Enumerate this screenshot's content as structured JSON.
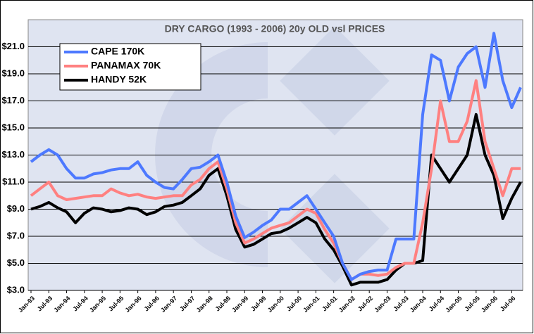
{
  "chart_data": {
    "type": "line",
    "title": "DRY CARGO (1993 - 2006) 20y OLD vsl PRICES",
    "categories": [
      "Jan-93",
      null,
      "Jul-93",
      null,
      "Jan-94",
      null,
      "Jul-94",
      null,
      "Jan-95",
      null,
      "Jul-95",
      null,
      "Jan-96",
      null,
      "Jul-96",
      null,
      "Jan-97",
      null,
      "Jul-97",
      null,
      "Jan-98",
      null,
      "Jul-98",
      null,
      "Jan-99",
      null,
      "Jul-99",
      null,
      "Jan-00",
      null,
      "Jul-00",
      null,
      "Jan-01",
      null,
      "Jul-01",
      null,
      "Jan-02",
      null,
      "Jul-02",
      null,
      "Jan-03",
      null,
      "Jul-03",
      null,
      "Jan-04",
      null,
      "Jul-04",
      null,
      "Jan-05",
      null,
      "Jul-05",
      null,
      "Jan-06",
      null,
      "Jul-06",
      null
    ],
    "series": [
      {
        "name": "CAPE 170K",
        "color": "#4d79ff",
        "values": [
          12.5,
          13.0,
          13.4,
          13.0,
          12.0,
          11.3,
          11.3,
          11.6,
          11.7,
          11.9,
          12.0,
          12.0,
          12.5,
          11.5,
          11.0,
          10.6,
          10.5,
          11.2,
          12.0,
          12.1,
          12.5,
          13.0,
          11.0,
          8.5,
          6.9,
          7.3,
          7.8,
          8.2,
          9.0,
          9.0,
          9.5,
          10.0,
          9.0,
          8.0,
          7.0,
          5.0,
          3.8,
          4.2,
          4.4,
          4.5,
          4.5,
          6.8,
          6.8,
          6.8,
          16.0,
          20.4,
          20.0,
          17.0,
          19.5,
          20.5,
          21.0,
          18.0,
          22.0,
          18.5,
          16.5,
          18.0
        ]
      },
      {
        "name": "PANAMAX 70K",
        "color": "#ff8080",
        "values": [
          10.0,
          10.5,
          11.0,
          10.0,
          9.7,
          9.8,
          9.9,
          10.0,
          10.0,
          10.5,
          10.2,
          10.0,
          10.1,
          9.9,
          9.8,
          9.9,
          10.0,
          10.0,
          10.8,
          11.2,
          12.0,
          12.5,
          10.5,
          8.0,
          6.5,
          6.8,
          7.2,
          7.6,
          7.8,
          8.0,
          8.5,
          9.0,
          8.7,
          7.5,
          6.5,
          5.0,
          3.8,
          4.2,
          4.2,
          4.1,
          4.2,
          4.7,
          5.0,
          5.0,
          8.0,
          12.0,
          17.0,
          14.0,
          14.0,
          15.5,
          18.5,
          14.0,
          12.0,
          10.0,
          12.0,
          12.0
        ]
      },
      {
        "name": "HANDY 52K",
        "color": "#000000",
        "values": [
          9.0,
          9.2,
          9.5,
          9.1,
          8.8,
          8.0,
          8.7,
          9.1,
          9.0,
          8.8,
          8.9,
          9.1,
          9.0,
          8.6,
          8.8,
          9.2,
          9.3,
          9.5,
          10.0,
          10.5,
          11.5,
          12.0,
          10.0,
          7.5,
          6.2,
          6.4,
          6.8,
          7.2,
          7.3,
          7.6,
          8.0,
          8.4,
          8.0,
          6.8,
          6.0,
          4.8,
          3.4,
          3.6,
          3.6,
          3.6,
          3.8,
          4.5,
          5.0,
          5.0,
          5.2,
          13.0,
          12.0,
          11.0,
          12.0,
          13.0,
          16.0,
          13.0,
          11.5,
          8.3,
          9.8,
          11.0
        ]
      }
    ],
    "ylim": [
      3,
      23
    ],
    "yticks": [
      {
        "value": 3,
        "label": "$3.0"
      },
      {
        "value": 5,
        "label": "$5.0"
      },
      {
        "value": 7,
        "label": "$7.0"
      },
      {
        "value": 9,
        "label": "$9.0"
      },
      {
        "value": 11,
        "label": "$11.0"
      },
      {
        "value": 13,
        "label": "$13.0"
      },
      {
        "value": 15,
        "label": "$15.0"
      },
      {
        "value": 17,
        "label": "$17.0"
      },
      {
        "value": 19,
        "label": "$19.0"
      },
      {
        "value": 21,
        "label": "$21.0"
      }
    ],
    "grid": true,
    "legend": "upper left"
  }
}
